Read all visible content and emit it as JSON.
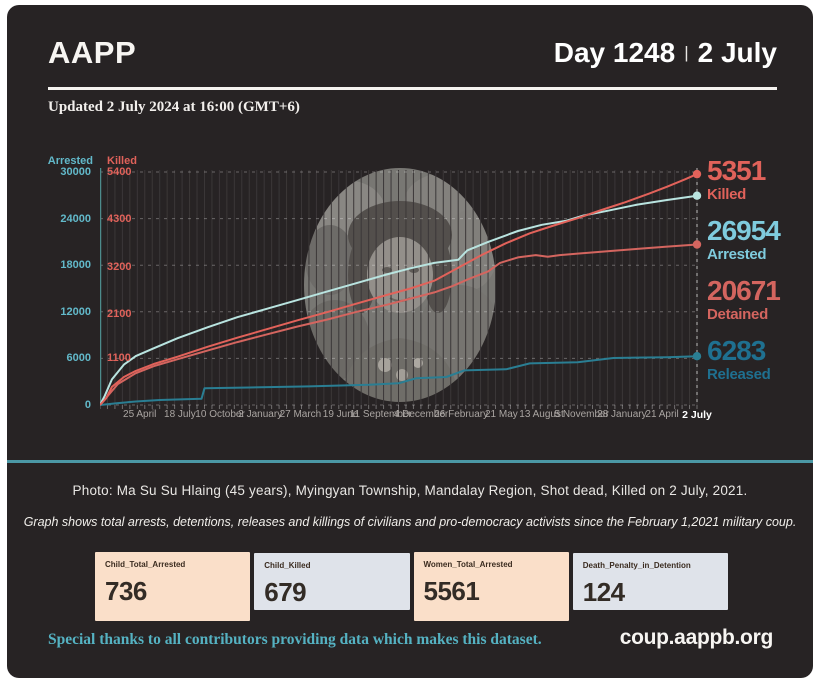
{
  "header": {
    "brand": "AAPP",
    "day": "Day 1248",
    "separator": "|",
    "date": "2 July"
  },
  "updated_line": "Updated 2 July 2024 at 16:00 (GMT+6)",
  "chart_data": {
    "type": "line",
    "grid": true,
    "legend_position": "right",
    "left_axis": {
      "title": "Arrested",
      "ticks": [
        "30000",
        "24000",
        "18000",
        "12000",
        "6000",
        "0"
      ],
      "max": 30000,
      "color": "#62b9ca"
    },
    "right_axis_inner": {
      "title": "Killed",
      "ticks": [
        "5400",
        "4300",
        "3200",
        "2100",
        "1100"
      ],
      "max": 5400,
      "color": "#e0625a"
    },
    "x_ticks": {
      "labels": [
        "25 April",
        "18 July",
        "10 October",
        "2 January",
        "27 March",
        "19 June",
        "11 September",
        "4 December",
        "26 February",
        "21 May",
        "13 August",
        "5 November",
        "28 January",
        "21 April",
        "2 July"
      ],
      "fractions": [
        0.0665,
        0.1338,
        0.2011,
        0.2684,
        0.3357,
        0.403,
        0.4703,
        0.5377,
        0.605,
        0.6723,
        0.7396,
        0.8069,
        0.8742,
        0.9415,
        1.0
      ]
    },
    "series": [
      {
        "name": "Released",
        "axis": "arrested",
        "color": "#2a7e93",
        "final": 6283,
        "points": [
          [
            0,
            0
          ],
          [
            0.03,
            250
          ],
          [
            0.06,
            450
          ],
          [
            0.1,
            650
          ],
          [
            0.17,
            800
          ],
          [
            0.175,
            2150
          ],
          [
            0.25,
            2250
          ],
          [
            0.35,
            2400
          ],
          [
            0.45,
            2600
          ],
          [
            0.5,
            2800
          ],
          [
            0.53,
            3450
          ],
          [
            0.58,
            3600
          ],
          [
            0.61,
            4450
          ],
          [
            0.68,
            4600
          ],
          [
            0.72,
            5350
          ],
          [
            0.8,
            5500
          ],
          [
            0.86,
            6050
          ],
          [
            0.95,
            6150
          ],
          [
            1,
            6283
          ]
        ]
      },
      {
        "name": "Detained",
        "axis": "arrested",
        "color": "#d4655f",
        "final": 20671,
        "points": [
          [
            0,
            0
          ],
          [
            0.01,
            900
          ],
          [
            0.03,
            2700
          ],
          [
            0.06,
            4100
          ],
          [
            0.09,
            5000
          ],
          [
            0.13,
            5900
          ],
          [
            0.18,
            7000
          ],
          [
            0.23,
            8100
          ],
          [
            0.28,
            9100
          ],
          [
            0.33,
            10100
          ],
          [
            0.38,
            11000
          ],
          [
            0.43,
            12000
          ],
          [
            0.48,
            12900
          ],
          [
            0.52,
            13700
          ],
          [
            0.56,
            14500
          ],
          [
            0.59,
            15300
          ],
          [
            0.62,
            16300
          ],
          [
            0.65,
            17200
          ],
          [
            0.67,
            18300
          ],
          [
            0.7,
            19000
          ],
          [
            0.73,
            19300
          ],
          [
            0.75,
            19100
          ],
          [
            0.77,
            19300
          ],
          [
            0.8,
            19500
          ],
          [
            0.85,
            19800
          ],
          [
            0.9,
            20100
          ],
          [
            0.95,
            20400
          ],
          [
            1,
            20671
          ]
        ]
      },
      {
        "name": "Arrested",
        "axis": "arrested",
        "color": "#b9e4e0",
        "final": 26954,
        "points": [
          [
            0,
            0
          ],
          [
            0.008,
            1200
          ],
          [
            0.02,
            3300
          ],
          [
            0.04,
            5200
          ],
          [
            0.06,
            6300
          ],
          [
            0.09,
            7300
          ],
          [
            0.13,
            8600
          ],
          [
            0.18,
            10000
          ],
          [
            0.23,
            11300
          ],
          [
            0.28,
            12400
          ],
          [
            0.33,
            13500
          ],
          [
            0.38,
            14600
          ],
          [
            0.43,
            15700
          ],
          [
            0.48,
            16800
          ],
          [
            0.52,
            17600
          ],
          [
            0.56,
            18300
          ],
          [
            0.6,
            18700
          ],
          [
            0.615,
            19900
          ],
          [
            0.65,
            21000
          ],
          [
            0.7,
            22400
          ],
          [
            0.74,
            23200
          ],
          [
            0.78,
            23700
          ],
          [
            0.81,
            24400
          ],
          [
            0.85,
            25000
          ],
          [
            0.9,
            25800
          ],
          [
            0.95,
            26400
          ],
          [
            1,
            26954
          ]
        ]
      },
      {
        "name": "Killed",
        "axis": "killed",
        "color": "#e2625a",
        "final": 5351,
        "points": [
          [
            0,
            0
          ],
          [
            0.01,
            150
          ],
          [
            0.02,
            420
          ],
          [
            0.04,
            650
          ],
          [
            0.06,
            790
          ],
          [
            0.09,
            950
          ],
          [
            0.13,
            1120
          ],
          [
            0.18,
            1350
          ],
          [
            0.23,
            1560
          ],
          [
            0.28,
            1760
          ],
          [
            0.33,
            1960
          ],
          [
            0.38,
            2150
          ],
          [
            0.43,
            2350
          ],
          [
            0.48,
            2550
          ],
          [
            0.52,
            2700
          ],
          [
            0.56,
            2880
          ],
          [
            0.6,
            3180
          ],
          [
            0.64,
            3480
          ],
          [
            0.68,
            3750
          ],
          [
            0.72,
            3980
          ],
          [
            0.76,
            4160
          ],
          [
            0.8,
            4330
          ],
          [
            0.84,
            4520
          ],
          [
            0.88,
            4700
          ],
          [
            0.92,
            4900
          ],
          [
            0.95,
            5060
          ],
          [
            0.98,
            5230
          ],
          [
            1,
            5351
          ]
        ]
      }
    ]
  },
  "summary_stats": [
    {
      "value": "5351",
      "label": "Killed",
      "theme": "salmon"
    },
    {
      "value": "26954",
      "label": "Arrested",
      "theme": "cyan"
    },
    {
      "value": "20671",
      "label": "Detained",
      "theme": "salmon2"
    },
    {
      "value": "6283",
      "label": "Released",
      "theme": "tealdark"
    }
  ],
  "captions": {
    "photo": "Photo: Ma Su Su Hlaing (45 years), Myingyan Township, Mandalay Region, Shot dead, Killed on 2 July, 2021.",
    "graph": "Graph shows total arrests, detentions, releases and killings of civilians and pro-democracy activists since the February 1,2021 military coup."
  },
  "stat_cards": [
    {
      "label": "Child_Total_Arrested",
      "value": "736",
      "theme": "peach"
    },
    {
      "label": "Child_Killed",
      "value": "679",
      "theme": "gray"
    },
    {
      "label": "Women_Total_Arrested",
      "value": "5561",
      "theme": "peach"
    },
    {
      "label": "Death_Penalty_in_Detention",
      "value": "124",
      "theme": "gray"
    }
  ],
  "footer": {
    "thanks": "Special thanks to all contributors providing data which makes this dataset.",
    "site": "coup.aappb.org"
  },
  "colors": {
    "background": "#272324",
    "frame": "#ffffff",
    "divider_teal": "#4b98a5",
    "salmon": "#e0625a",
    "cyan": "#7fcbdd",
    "teal_dark": "#1f7090",
    "card_peach": "#fadfc9",
    "card_gray": "#dfe3ea",
    "footer_teal": "#55b2c2"
  }
}
